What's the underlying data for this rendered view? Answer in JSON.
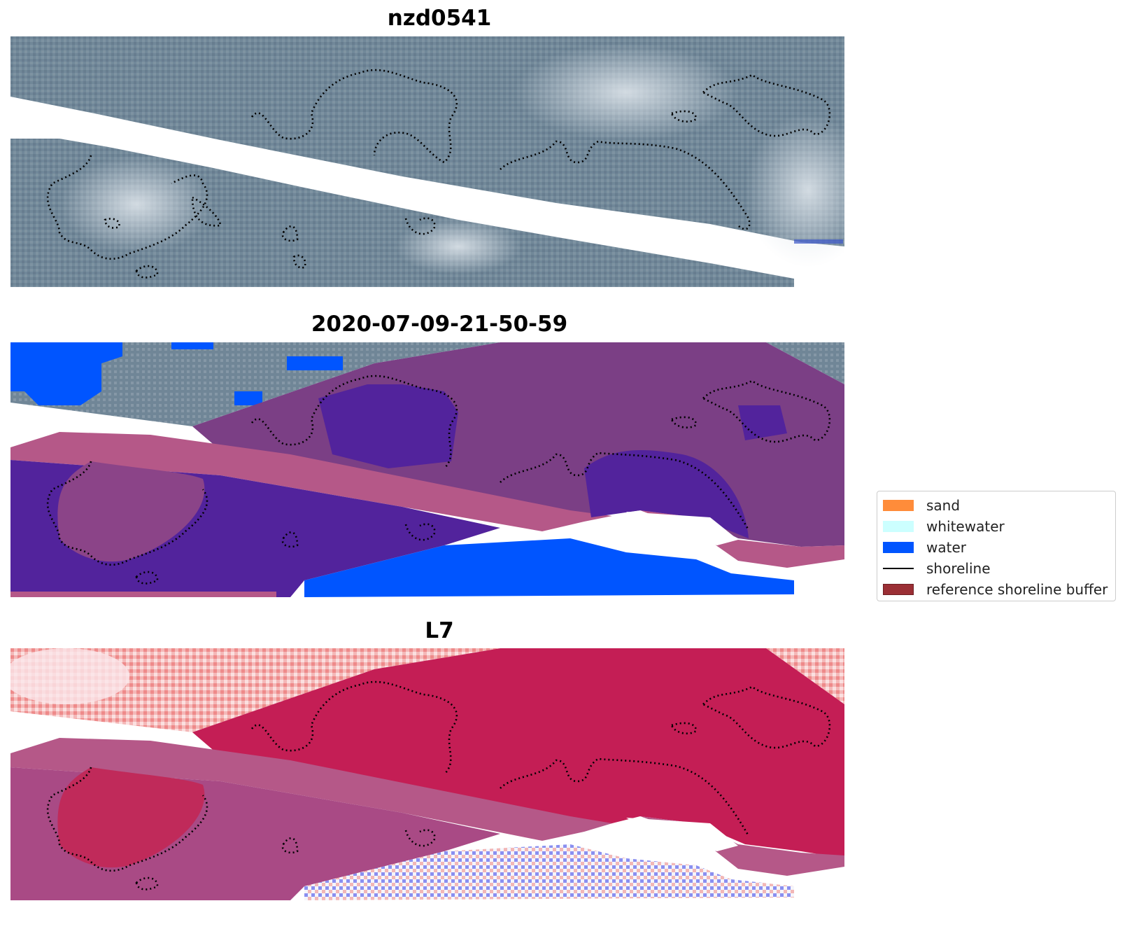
{
  "panels": [
    {
      "title": "nzd0541",
      "style": "rgb"
    },
    {
      "title": "2020-07-09-21-50-59",
      "style": "classified"
    },
    {
      "title": "L7",
      "style": "index"
    }
  ],
  "legend": {
    "items": [
      {
        "label": "sand",
        "color": "#ff8c3a",
        "kind": "patch"
      },
      {
        "label": "whitewater",
        "color": "#ccffff",
        "kind": "patch"
      },
      {
        "label": "water",
        "color": "#0055ff",
        "kind": "patch"
      },
      {
        "label": "shoreline",
        "color": "#000000",
        "kind": "line"
      },
      {
        "label": "reference shoreline buffer",
        "color": "#9b2f35",
        "kind": "patch"
      }
    ]
  },
  "colors": {
    "rgb_base": "#6f8597",
    "rgb_light": "#c9d3dc",
    "water": "#0055ff",
    "buffer": "#b55888",
    "classified_land": "#7b3f85",
    "classified_dark": "#52239c",
    "index_land": "#c41e55",
    "index_white": "#ffffff",
    "index_blue": "#2233dd"
  }
}
